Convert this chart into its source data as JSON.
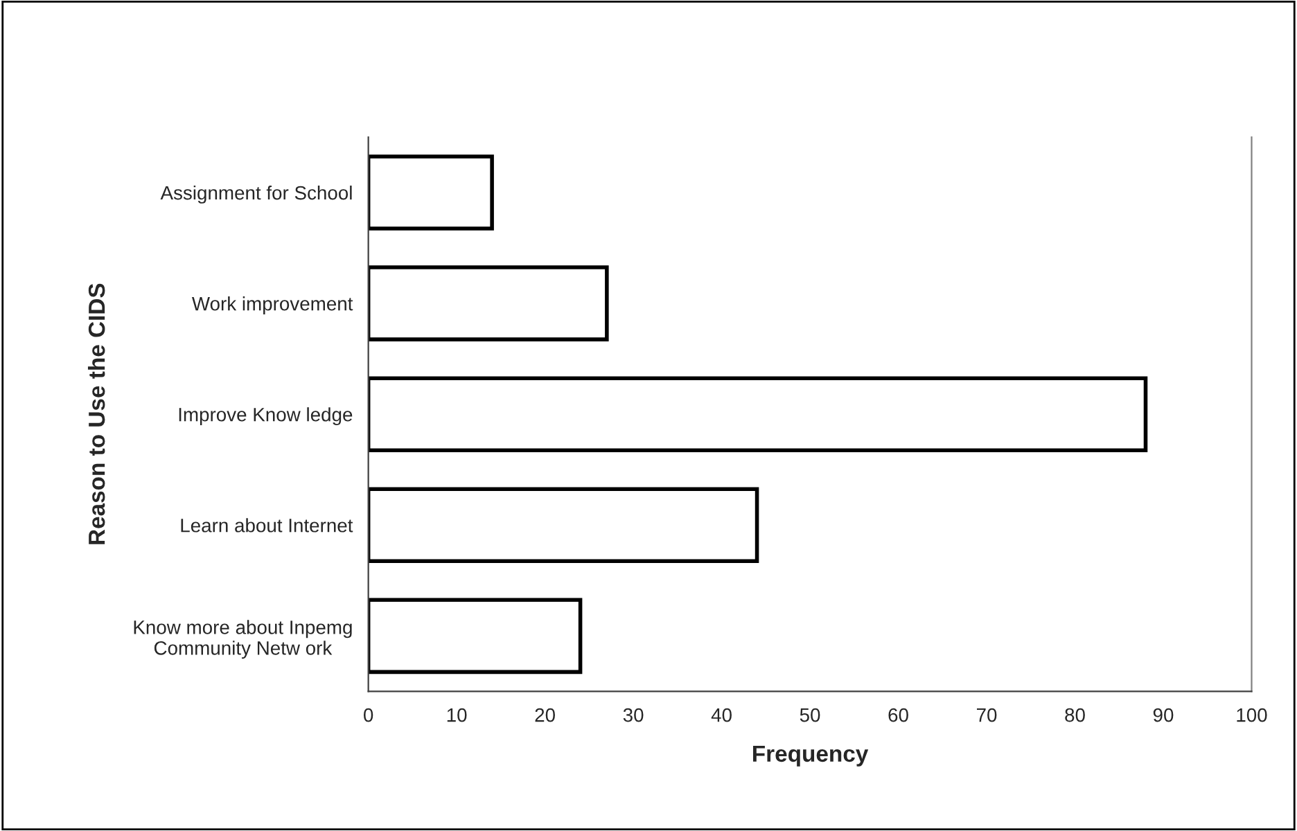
{
  "chart_data": {
    "type": "bar",
    "orientation": "horizontal",
    "xlabel": "Frequency",
    "ylabel": "Reason to Use the CIDS",
    "categories": [
      "Assignment for School",
      "Work improvement",
      "Improve Know ledge",
      "Learn about Internet",
      "Know more about Inpemg\nCommunity Netw ork"
    ],
    "values": [
      14,
      27,
      88,
      44,
      24
    ],
    "color": "#ffffff",
    "xlim": [
      0,
      100
    ],
    "xticks": [
      0,
      10,
      20,
      30,
      40,
      50,
      60,
      70,
      80,
      90,
      100
    ],
    "grid": false,
    "legend": false
  }
}
